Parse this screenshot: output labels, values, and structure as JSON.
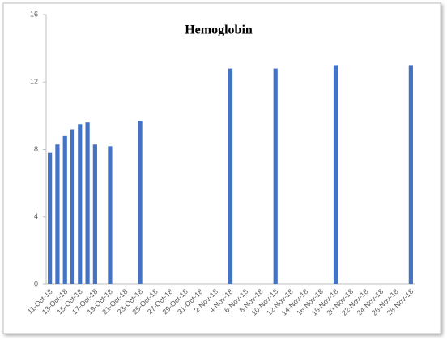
{
  "chart_data": {
    "type": "bar",
    "title": "Hemoglobin",
    "categories": [
      "11-Oct-18",
      null,
      "13-Oct-18",
      null,
      "15-Oct-18",
      null,
      "17-Oct-18",
      null,
      "19-Oct-18",
      null,
      "21-Oct-18",
      null,
      "23-Oct-18",
      null,
      "25-Oct-18",
      null,
      "27-Oct-18",
      null,
      "29-Oct-18",
      null,
      "31-Oct-18",
      null,
      "2-Nov-18",
      null,
      "4-Nov-18",
      null,
      "6-Nov-18",
      null,
      "8-Nov-18",
      null,
      "10-Nov-18",
      null,
      "12-Nov-18",
      null,
      "14-Nov-18",
      null,
      "16-Nov-18",
      null,
      "18-Nov-18",
      null,
      "20-Nov-18",
      null,
      "22-Nov-18",
      null,
      "24-Nov-18",
      null,
      "26-Nov-18",
      null,
      "28-Nov-18"
    ],
    "values": [
      7.8,
      8.3,
      8.8,
      9.2,
      9.5,
      9.6,
      8.3,
      null,
      8.2,
      null,
      null,
      null,
      9.7,
      null,
      null,
      null,
      null,
      null,
      null,
      null,
      null,
      null,
      null,
      null,
      12.8,
      null,
      null,
      null,
      null,
      null,
      12.8,
      null,
      null,
      null,
      null,
      null,
      null,
      null,
      13.0,
      null,
      null,
      null,
      null,
      null,
      null,
      null,
      null,
      null,
      13.0
    ],
    "color": "#4472c4",
    "ylim": [
      0,
      16
    ],
    "yticks": [
      0,
      4,
      8,
      12,
      16
    ],
    "grid": false
  }
}
